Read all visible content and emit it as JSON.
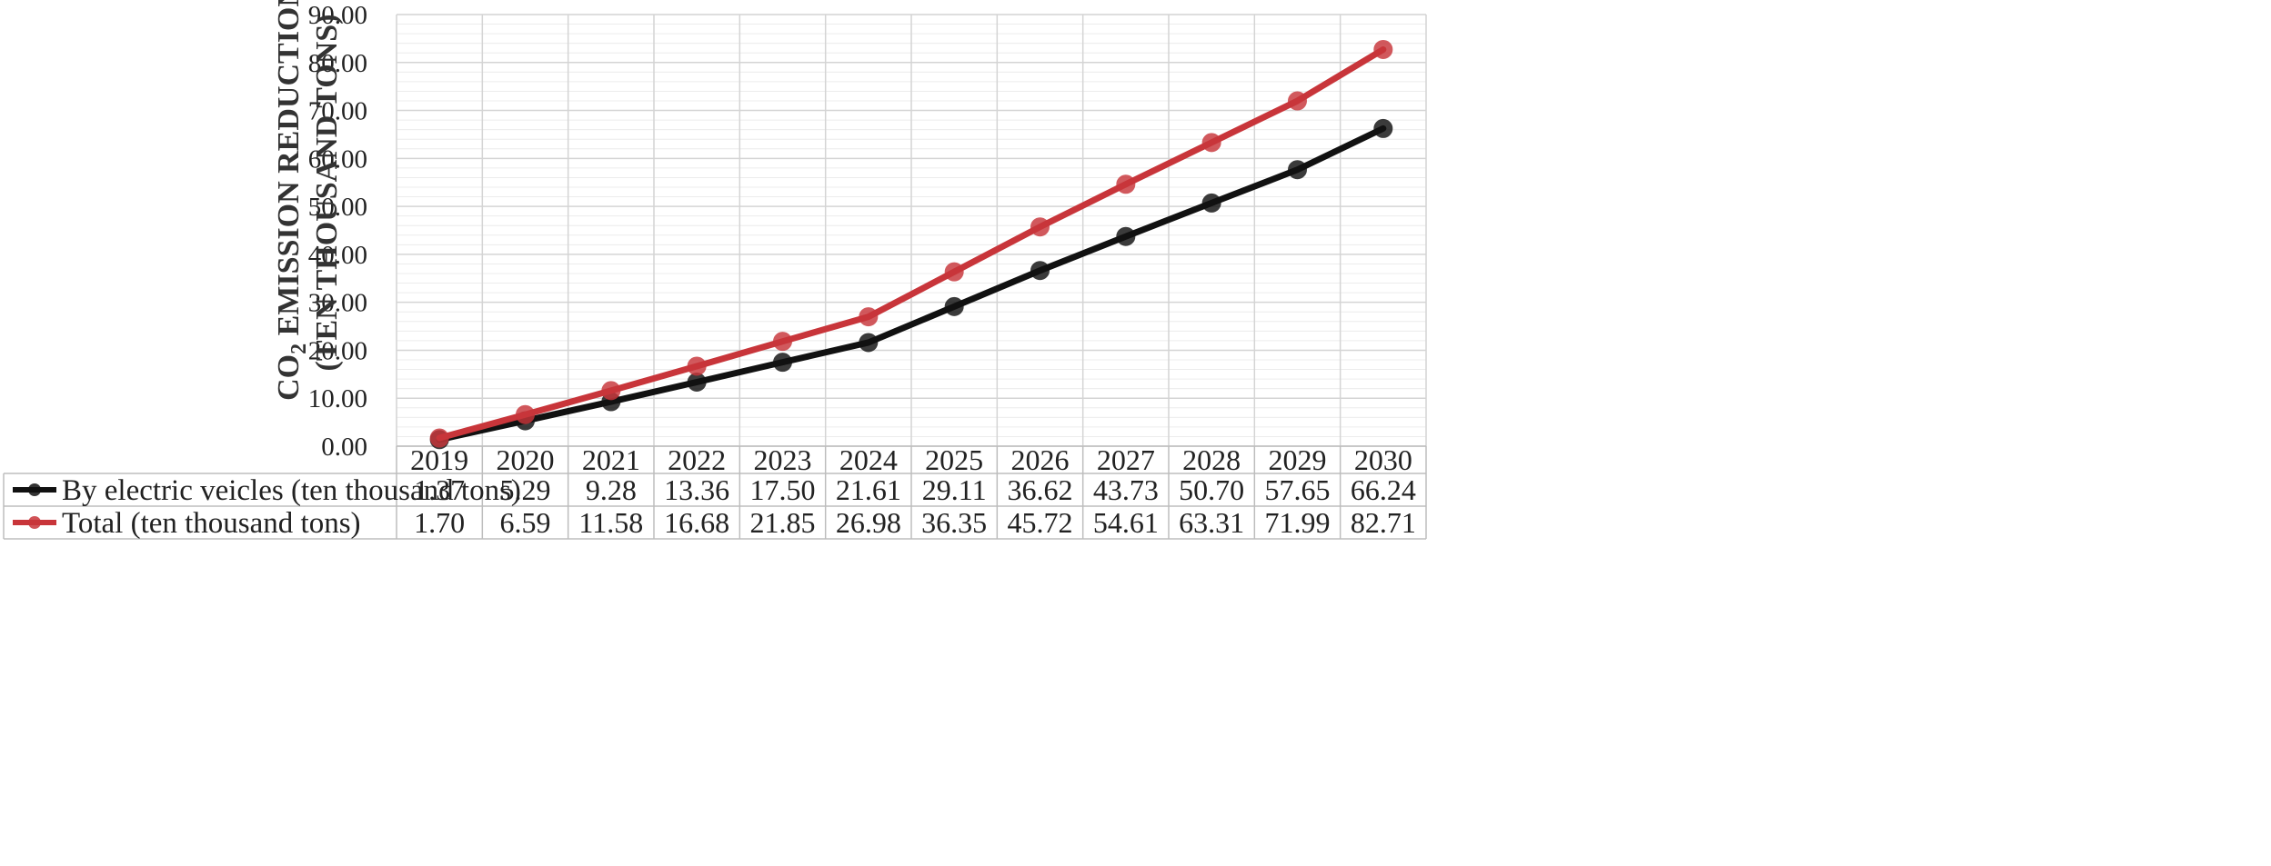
{
  "chart_data": {
    "type": "line",
    "title": "",
    "ylabel_prefix": "CO",
    "ylabel_subscript": "2",
    "ylabel_line1_rest": " EMISSION REDUCTION",
    "ylabel_line2": "(TEN THOUSAND TONS)",
    "xlabel": "",
    "ylim": [
      0,
      90
    ],
    "yticks": [
      "0.00",
      "10.00",
      "20.00",
      "30.00",
      "40.00",
      "50.00",
      "60.00",
      "70.00",
      "80.00",
      "90.00"
    ],
    "categories": [
      "2019",
      "2020",
      "2021",
      "2022",
      "2023",
      "2024",
      "2025",
      "2026",
      "2027",
      "2028",
      "2029",
      "2030"
    ],
    "series": [
      {
        "name": "By electric veicles (ten thousand tons)",
        "color": "#111111",
        "values": [
          1.37,
          5.29,
          9.28,
          13.36,
          17.5,
          21.61,
          29.11,
          36.62,
          43.73,
          50.7,
          57.65,
          66.24
        ],
        "labels": [
          "1.37",
          "5.29",
          "9.28",
          "13.36",
          "17.50",
          "21.61",
          "29.11",
          "36.62",
          "43.73",
          "50.70",
          "57.65",
          "66.24"
        ]
      },
      {
        "name": "Total (ten thousand tons)",
        "color": "#c8353a",
        "values": [
          1.7,
          6.59,
          11.58,
          16.68,
          21.85,
          26.98,
          36.35,
          45.72,
          54.61,
          63.31,
          71.99,
          82.71
        ],
        "labels": [
          "1.70",
          "6.59",
          "11.58",
          "16.68",
          "21.85",
          "26.98",
          "36.35",
          "45.72",
          "54.61",
          "63.31",
          "71.99",
          "82.71"
        ]
      }
    ],
    "grid": true,
    "legend": "data-table-below"
  }
}
